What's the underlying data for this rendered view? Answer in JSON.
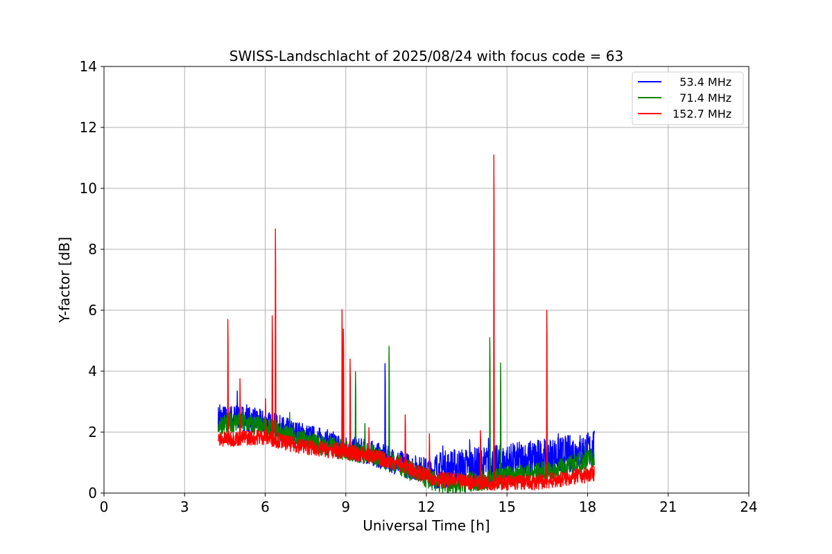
{
  "chart_data": {
    "type": "line",
    "title": "SWISS-Landschlacht of 2025/08/24 with focus code = 63",
    "xlabel": "Universal Time [h]",
    "ylabel": "Y-factor [dB]",
    "xlim": [
      0,
      24
    ],
    "ylim": [
      0,
      14
    ],
    "xticks": [
      "0",
      "3",
      "6",
      "9",
      "12",
      "15",
      "18",
      "21",
      "24"
    ],
    "yticks": [
      "0",
      "2",
      "4",
      "6",
      "8",
      "10",
      "12",
      "14"
    ],
    "grid": true,
    "legend_position": "top-right",
    "series": [
      {
        "name": "  53.4 MHz",
        "color": "#0000ff",
        "base": [
          [
            4.25,
            2.45
          ],
          [
            5,
            2.5
          ],
          [
            6,
            2.3
          ],
          [
            7,
            2.0
          ],
          [
            8,
            1.75
          ],
          [
            9,
            1.5
          ],
          [
            10,
            1.3
          ],
          [
            10.8,
            1.05
          ],
          [
            11.5,
            0.85
          ],
          [
            12,
            0.75
          ],
          [
            12.5,
            0.75
          ],
          [
            13,
            0.85
          ],
          [
            14,
            0.9
          ],
          [
            15,
            1.0
          ],
          [
            16,
            1.15
          ],
          [
            17,
            1.25
          ],
          [
            18,
            1.4
          ],
          [
            18.25,
            1.45
          ]
        ],
        "spikes": [
          [
            4.3,
            2.9
          ],
          [
            4.95,
            3.35
          ],
          [
            5.3,
            2.9
          ],
          [
            10.45,
            4.25
          ],
          [
            12.6,
            1.55
          ],
          [
            13.6,
            1.75
          ],
          [
            14.3,
            1.8
          ],
          [
            16.9,
            1.95
          ],
          [
            18.2,
            2.0
          ]
        ]
      },
      {
        "name": "  71.4 MHz",
        "color": "#008000",
        "base": [
          [
            4.25,
            2.25
          ],
          [
            5,
            2.35
          ],
          [
            6,
            2.15
          ],
          [
            7,
            1.85
          ],
          [
            8,
            1.6
          ],
          [
            9,
            1.4
          ],
          [
            10,
            1.25
          ],
          [
            10.8,
            1.0
          ],
          [
            11.5,
            0.7
          ],
          [
            12,
            0.5
          ],
          [
            12.5,
            0.3
          ],
          [
            13,
            0.3
          ],
          [
            14,
            0.4
          ],
          [
            15,
            0.55
          ],
          [
            16,
            0.65
          ],
          [
            17,
            0.8
          ],
          [
            18,
            1.1
          ],
          [
            18.25,
            1.2
          ]
        ],
        "spikes": [
          [
            6.9,
            2.65
          ],
          [
            9.35,
            3.98
          ],
          [
            9.7,
            2.28
          ],
          [
            10.6,
            4.82
          ],
          [
            14.35,
            5.1
          ],
          [
            14.75,
            4.27
          ],
          [
            17.9,
            1.6
          ]
        ]
      },
      {
        "name": "152.7 MHz",
        "color": "#ff0000",
        "base": [
          [
            4.25,
            1.75
          ],
          [
            5,
            1.8
          ],
          [
            6,
            1.85
          ],
          [
            7,
            1.6
          ],
          [
            8,
            1.45
          ],
          [
            9,
            1.35
          ],
          [
            10,
            1.2
          ],
          [
            11,
            0.95
          ],
          [
            11.5,
            0.75
          ],
          [
            12,
            0.55
          ],
          [
            12.5,
            0.45
          ],
          [
            13,
            0.4
          ],
          [
            14,
            0.35
          ],
          [
            15,
            0.35
          ],
          [
            16,
            0.35
          ],
          [
            17,
            0.45
          ],
          [
            18,
            0.6
          ],
          [
            18.25,
            0.65
          ]
        ],
        "spikes": [
          [
            4.6,
            5.7
          ],
          [
            5.05,
            3.75
          ],
          [
            6.0,
            3.1
          ],
          [
            6.25,
            5.82
          ],
          [
            6.37,
            8.67
          ],
          [
            8.85,
            6.02
          ],
          [
            8.9,
            5.38
          ],
          [
            9.15,
            4.4
          ],
          [
            9.85,
            2.15
          ],
          [
            11.2,
            2.57
          ],
          [
            12.1,
            1.95
          ],
          [
            14.0,
            2.05
          ],
          [
            14.5,
            11.1
          ],
          [
            16.47,
            6.0
          ]
        ]
      }
    ]
  }
}
